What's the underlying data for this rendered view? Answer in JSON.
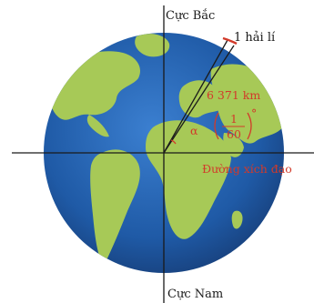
{
  "labels": {
    "north_pole": "Cực Bắc",
    "south_pole": "Cực Nam",
    "nautical_mile": "1 hải lí",
    "radius": "6 371 km",
    "alpha": "α",
    "fraction_numerator": "1",
    "fraction_denominator": "60",
    "degree_mark": "°",
    "equator": "Đường xích đạo"
  },
  "colors": {
    "ocean": "#1f5aa6",
    "land": "#a7c957",
    "annotation": "#d23a2a",
    "axis": "#1a1a1a"
  }
}
